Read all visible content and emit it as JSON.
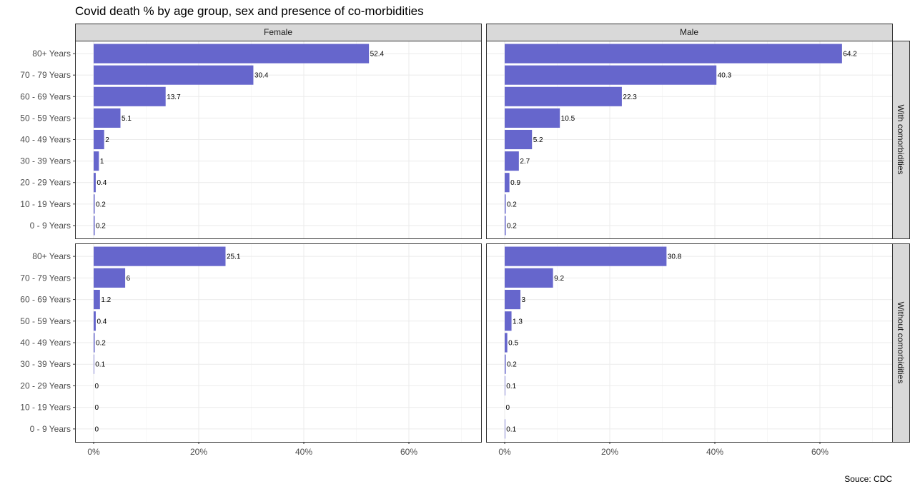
{
  "chart_data": {
    "type": "bar",
    "orientation": "horizontal",
    "title": "Covid death % by age group, sex and presence of co-morbidities",
    "caption": "Souce: CDC",
    "categories": [
      "80+ Years",
      "70 - 79 Years",
      "60 - 69 Years",
      "50 - 59 Years",
      "40 - 49 Years",
      "30 - 39 Years",
      "20 - 29 Years",
      "10 - 19 Years",
      "0 - 9 Years"
    ],
    "columns": [
      "Female",
      "Male"
    ],
    "rows": [
      "With comorbidities",
      "Without comorbidities"
    ],
    "x_ticks": [
      "0%",
      "20%",
      "40%",
      "60%"
    ],
    "xlim": [
      0,
      73
    ],
    "bar_color": "#6666CC",
    "grid": true,
    "panels": [
      {
        "column": "Female",
        "row": "With comorbidities",
        "values": [
          52.4,
          30.4,
          13.7,
          5.1,
          2,
          1,
          0.4,
          0.2,
          0.2
        ]
      },
      {
        "column": "Male",
        "row": "With comorbidities",
        "values": [
          64.2,
          40.3,
          22.3,
          10.5,
          5.2,
          2.7,
          0.9,
          0.2,
          0.2
        ]
      },
      {
        "column": "Female",
        "row": "Without comorbidities",
        "values": [
          25.1,
          6,
          1.2,
          0.4,
          0.2,
          0.1,
          0,
          0,
          0
        ]
      },
      {
        "column": "Male",
        "row": "Without comorbidities",
        "values": [
          30.8,
          9.2,
          3,
          1.3,
          0.5,
          0.2,
          0.1,
          0,
          0.1
        ]
      }
    ]
  }
}
